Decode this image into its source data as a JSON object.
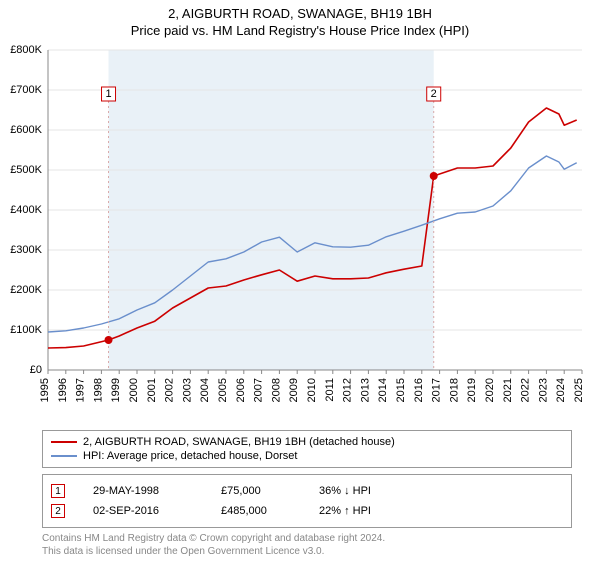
{
  "title": "2, AIGBURTH ROAD, SWANAGE, BH19 1BH",
  "subtitle": "Price paid vs. HM Land Registry's House Price Index (HPI)",
  "chart": {
    "type": "line",
    "background_color": "#ffffff",
    "plot_background_color": "#ffffff",
    "hpi_span_color": "#e9f1f7",
    "grid_color": "#e5e5e5",
    "axis_color": "#888888",
    "font_family": "Arial",
    "tick_fontsize": 11,
    "x": {
      "min": 1995,
      "max": 2025,
      "tick_labels": [
        "1995",
        "1996",
        "1997",
        "1998",
        "1999",
        "2000",
        "2001",
        "2002",
        "2003",
        "2004",
        "2005",
        "2006",
        "2007",
        "2008",
        "2009",
        "2010",
        "2011",
        "2012",
        "2013",
        "2014",
        "2015",
        "2016",
        "2017",
        "2018",
        "2019",
        "2020",
        "2021",
        "2022",
        "2023",
        "2024",
        "2025"
      ]
    },
    "y": {
      "min": 0,
      "max": 800000,
      "tick_step": 100000,
      "tick_labels": [
        "£0",
        "£100K",
        "£200K",
        "£300K",
        "£400K",
        "£500K",
        "£600K",
        "£700K",
        "£800K"
      ]
    },
    "series": [
      {
        "name": "property",
        "color": "#cc0000",
        "width": 1.6,
        "points": [
          [
            1995,
            55000
          ],
          [
            1996,
            56000
          ],
          [
            1997,
            60000
          ],
          [
            1998.4,
            75000
          ],
          [
            1999,
            85000
          ],
          [
            2000,
            105000
          ],
          [
            2001,
            122000
          ],
          [
            2002,
            155000
          ],
          [
            2003,
            180000
          ],
          [
            2004,
            205000
          ],
          [
            2005,
            210000
          ],
          [
            2006,
            225000
          ],
          [
            2007,
            238000
          ],
          [
            2008,
            250000
          ],
          [
            2009,
            222000
          ],
          [
            2010,
            235000
          ],
          [
            2011,
            228000
          ],
          [
            2012,
            228000
          ],
          [
            2013,
            230000
          ],
          [
            2014,
            243000
          ],
          [
            2015,
            252000
          ],
          [
            2016,
            260000
          ],
          [
            2016.67,
            485000
          ],
          [
            2017,
            490000
          ],
          [
            2018,
            505000
          ],
          [
            2019,
            505000
          ],
          [
            2020,
            510000
          ],
          [
            2021,
            555000
          ],
          [
            2022,
            620000
          ],
          [
            2023,
            655000
          ],
          [
            2023.7,
            640000
          ],
          [
            2024,
            612000
          ],
          [
            2024.7,
            625000
          ]
        ]
      },
      {
        "name": "hpi",
        "color": "#6a8fcc",
        "width": 1.4,
        "points": [
          [
            1995,
            95000
          ],
          [
            1996,
            98000
          ],
          [
            1997,
            105000
          ],
          [
            1998,
            115000
          ],
          [
            1999,
            128000
          ],
          [
            2000,
            150000
          ],
          [
            2001,
            168000
          ],
          [
            2002,
            200000
          ],
          [
            2003,
            235000
          ],
          [
            2004,
            270000
          ],
          [
            2005,
            278000
          ],
          [
            2006,
            295000
          ],
          [
            2007,
            320000
          ],
          [
            2008,
            332000
          ],
          [
            2009,
            295000
          ],
          [
            2010,
            318000
          ],
          [
            2011,
            308000
          ],
          [
            2012,
            307000
          ],
          [
            2013,
            312000
          ],
          [
            2014,
            333000
          ],
          [
            2015,
            347000
          ],
          [
            2016,
            362000
          ],
          [
            2017,
            378000
          ],
          [
            2018,
            392000
          ],
          [
            2019,
            395000
          ],
          [
            2020,
            410000
          ],
          [
            2021,
            448000
          ],
          [
            2022,
            505000
          ],
          [
            2023,
            535000
          ],
          [
            2023.7,
            520000
          ],
          [
            2024,
            502000
          ],
          [
            2024.7,
            518000
          ]
        ]
      }
    ],
    "markers": [
      {
        "label": "1",
        "x": 1998.4,
        "y": 75000,
        "dash_to_top": true,
        "box_y": 690000
      },
      {
        "label": "2",
        "x": 2016.67,
        "y": 485000,
        "dash_to_top": true,
        "box_y": 690000
      }
    ],
    "marker_box": {
      "size": 14,
      "stroke": "#cc0000",
      "fill": "#ffffff"
    },
    "marker_dash": {
      "color": "#d9a8a8",
      "dasharray": "2,3",
      "width": 1
    },
    "marker_dot": {
      "radius": 4,
      "color": "#cc0000"
    },
    "hpi_span": {
      "x_start": 1998.4,
      "x_end": 2016.67
    }
  },
  "legend": {
    "border_color": "#999999",
    "rows": [
      {
        "color": "#cc0000",
        "label": "2, AIGBURTH ROAD, SWANAGE, BH19 1BH (detached house)"
      },
      {
        "color": "#6a8fcc",
        "label": "HPI: Average price, detached house, Dorset"
      }
    ]
  },
  "transactions": {
    "border_color": "#999999",
    "rows": [
      {
        "num": "1",
        "date": "29-MAY-1998",
        "price": "£75,000",
        "pct": "36% ↓ HPI"
      },
      {
        "num": "2",
        "date": "02-SEP-2016",
        "price": "£485,000",
        "pct": "22% ↑ HPI"
      }
    ]
  },
  "footnote_line1": "Contains HM Land Registry data © Crown copyright and database right 2024.",
  "footnote_line2": "This data is licensed under the Open Government Licence v3.0.",
  "colors": {
    "text": "#000000",
    "footnote": "#888888"
  }
}
